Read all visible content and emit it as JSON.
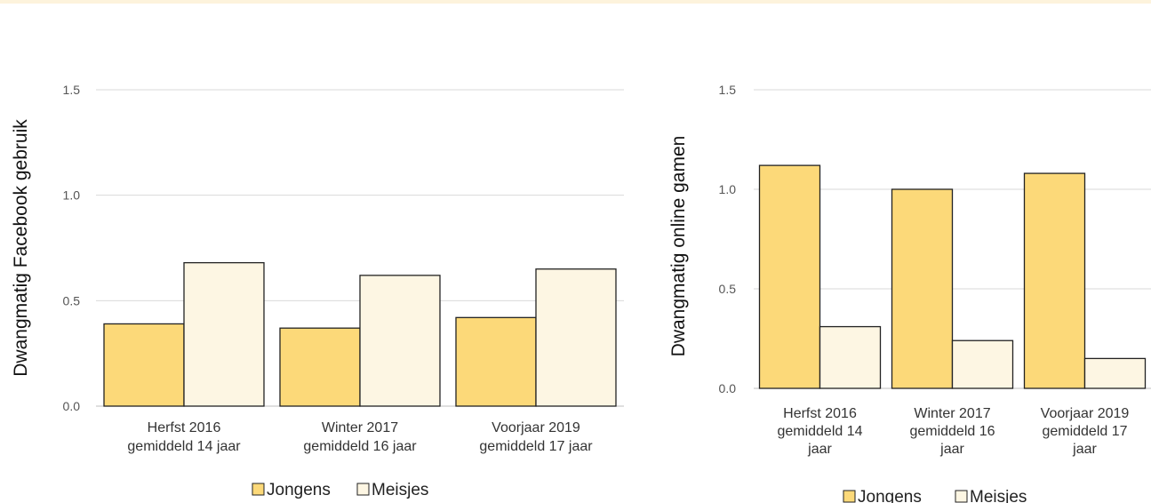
{
  "colors": {
    "jongens": "#fcd979",
    "meisjes": "#fdf6e3",
    "stroke": "#222222",
    "grid": "#d9d9d9"
  },
  "chart_data": [
    {
      "type": "bar",
      "ylabel": "Dwangmatig Facebook gebruik",
      "yticks": [
        "0.0",
        "0.5",
        "1.0",
        "1.5"
      ],
      "ylim": [
        0,
        1.5
      ],
      "categories": [
        [
          "Herfst 2016",
          "gemiddeld 14 jaar"
        ],
        [
          "Winter 2017",
          "gemiddeld 16 jaar"
        ],
        [
          "Voorjaar 2019",
          "gemiddeld 17 jaar"
        ]
      ],
      "series": [
        {
          "name": "Jongens",
          "values": [
            0.39,
            0.37,
            0.42
          ]
        },
        {
          "name": "Meisjes",
          "values": [
            0.68,
            0.62,
            0.65
          ]
        }
      ],
      "legend": "bottom"
    },
    {
      "type": "bar",
      "ylabel": "Dwangmatig online gamen",
      "yticks": [
        "0.0",
        "0.5",
        "1.0",
        "1.5"
      ],
      "ylim": [
        0,
        1.5
      ],
      "categories": [
        [
          "Herfst 2016",
          "gemiddeld 14",
          "jaar"
        ],
        [
          "Winter 2017",
          "gemiddeld 16",
          "jaar"
        ],
        [
          "Voorjaar 2019",
          "gemiddeld 17",
          "jaar"
        ]
      ],
      "series": [
        {
          "name": "Jongens",
          "values": [
            1.12,
            1.0,
            1.08
          ]
        },
        {
          "name": "Meisjes",
          "values": [
            0.31,
            0.24,
            0.15
          ]
        }
      ],
      "legend": "bottom"
    }
  ]
}
